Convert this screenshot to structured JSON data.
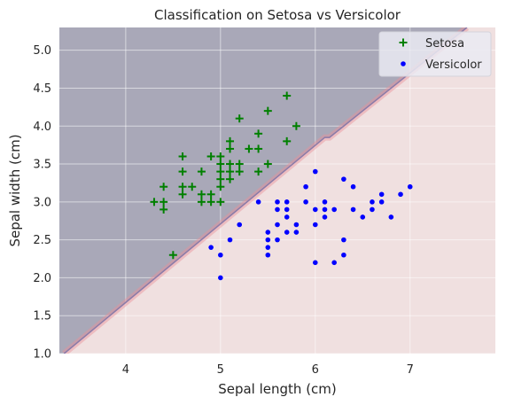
{
  "chart_data": {
    "type": "scatter",
    "title": "Classification on Setosa vs Versicolor",
    "xlabel": "Sepal length (cm)",
    "ylabel": "Sepal width (cm)",
    "xlim": [
      3.3,
      7.9
    ],
    "ylim": [
      1.0,
      5.3
    ],
    "xticks": [
      "4",
      "5",
      "6",
      "7"
    ],
    "xtick_values": [
      4,
      5,
      6,
      7
    ],
    "yticks": [
      "1.0",
      "1.5",
      "2.0",
      "2.5",
      "3.0",
      "3.5",
      "4.0",
      "4.5",
      "5.0"
    ],
    "ytick_values": [
      1.0,
      1.5,
      2.0,
      2.5,
      3.0,
      3.5,
      4.0,
      4.5,
      5.0
    ],
    "grid": true,
    "legend_position": "top-right",
    "decision_regions": {
      "boundary_line": [
        [
          3.35,
          1.0
        ],
        [
          6.1,
          3.85
        ],
        [
          6.15,
          3.85
        ],
        [
          7.6,
          5.3
        ]
      ],
      "setosa_region_color": "#a9a8b8",
      "versicolor_region_color": "#f0e0e0",
      "boundary_color": "#e8909a"
    },
    "series": [
      {
        "name": "Setosa",
        "marker": "plus",
        "color": "#008000",
        "points": [
          [
            4.3,
            3.0
          ],
          [
            4.4,
            3.2
          ],
          [
            4.4,
            2.9
          ],
          [
            4.4,
            3.0
          ],
          [
            4.5,
            2.3
          ],
          [
            4.6,
            3.6
          ],
          [
            4.6,
            3.4
          ],
          [
            4.6,
            3.2
          ],
          [
            4.6,
            3.1
          ],
          [
            4.7,
            3.2
          ],
          [
            4.8,
            3.4
          ],
          [
            4.8,
            3.1
          ],
          [
            4.8,
            3.0
          ],
          [
            4.9,
            3.6
          ],
          [
            4.9,
            3.1
          ],
          [
            4.9,
            3.0
          ],
          [
            5.0,
            3.6
          ],
          [
            5.0,
            3.5
          ],
          [
            5.0,
            3.4
          ],
          [
            5.0,
            3.3
          ],
          [
            5.0,
            3.2
          ],
          [
            5.0,
            3.0
          ],
          [
            5.1,
            3.8
          ],
          [
            5.1,
            3.7
          ],
          [
            5.1,
            3.5
          ],
          [
            5.1,
            3.4
          ],
          [
            5.1,
            3.3
          ],
          [
            5.2,
            4.1
          ],
          [
            5.2,
            3.5
          ],
          [
            5.2,
            3.4
          ],
          [
            5.3,
            3.7
          ],
          [
            5.4,
            3.9
          ],
          [
            5.4,
            3.7
          ],
          [
            5.4,
            3.4
          ],
          [
            5.5,
            4.2
          ],
          [
            5.5,
            3.5
          ],
          [
            5.7,
            4.4
          ],
          [
            5.7,
            3.8
          ],
          [
            5.8,
            4.0
          ]
        ]
      },
      {
        "name": "Versicolor",
        "marker": "circle",
        "color": "#0000ff",
        "points": [
          [
            4.9,
            2.4
          ],
          [
            5.0,
            2.3
          ],
          [
            5.0,
            2.0
          ],
          [
            5.1,
            2.5
          ],
          [
            5.2,
            2.7
          ],
          [
            5.4,
            3.0
          ],
          [
            5.5,
            2.6
          ],
          [
            5.5,
            2.5
          ],
          [
            5.5,
            2.4
          ],
          [
            5.5,
            2.3
          ],
          [
            5.6,
            3.0
          ],
          [
            5.6,
            2.9
          ],
          [
            5.6,
            2.7
          ],
          [
            5.6,
            2.5
          ],
          [
            5.7,
            3.0
          ],
          [
            5.7,
            2.9
          ],
          [
            5.7,
            2.8
          ],
          [
            5.7,
            2.6
          ],
          [
            5.8,
            2.7
          ],
          [
            5.8,
            2.6
          ],
          [
            5.9,
            3.2
          ],
          [
            5.9,
            3.0
          ],
          [
            6.0,
            3.4
          ],
          [
            6.0,
            2.9
          ],
          [
            6.0,
            2.7
          ],
          [
            6.0,
            2.2
          ],
          [
            6.1,
            3.0
          ],
          [
            6.1,
            2.9
          ],
          [
            6.1,
            2.8
          ],
          [
            6.2,
            2.9
          ],
          [
            6.2,
            2.2
          ],
          [
            6.3,
            3.3
          ],
          [
            6.3,
            2.5
          ],
          [
            6.3,
            2.3
          ],
          [
            6.4,
            3.2
          ],
          [
            6.4,
            2.9
          ],
          [
            6.5,
            2.8
          ],
          [
            6.6,
            3.0
          ],
          [
            6.6,
            2.9
          ],
          [
            6.7,
            3.1
          ],
          [
            6.7,
            3.0
          ],
          [
            6.8,
            2.8
          ],
          [
            6.9,
            3.1
          ],
          [
            7.0,
            3.2
          ]
        ]
      }
    ]
  }
}
